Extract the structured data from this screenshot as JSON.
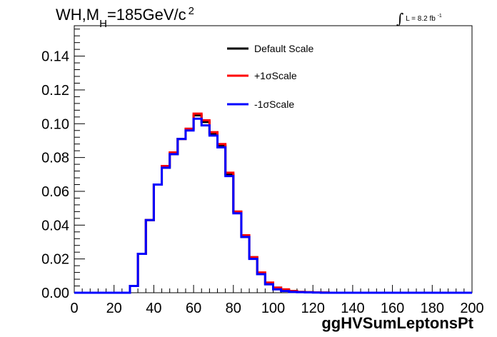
{
  "title": {
    "main": "WH,M",
    "sub": "H",
    "rest": "=185GeV/c",
    "sup": "2"
  },
  "luminosity": {
    "symbol": "∫",
    "text": "L = 8.2 fb",
    "sup": "-1"
  },
  "chart_data": {
    "type": "line",
    "style": "step-histogram",
    "xlabel": "ggHVSumLeptonsPt",
    "ylabel": "",
    "xlim": [
      0,
      200
    ],
    "ylim": [
      0,
      0.158
    ],
    "xticks": [
      0,
      20,
      40,
      60,
      80,
      100,
      120,
      140,
      160,
      180,
      200
    ],
    "yticks": [
      0.0,
      0.02,
      0.04,
      0.06,
      0.08,
      0.1,
      0.12,
      0.14
    ],
    "ytick_labels": [
      "0.00",
      "0.02",
      "0.04",
      "0.06",
      "0.08",
      "0.10",
      "0.12",
      "0.14"
    ],
    "bin_edges": [
      0,
      4,
      8,
      12,
      16,
      20,
      24,
      28,
      32,
      36,
      40,
      44,
      48,
      52,
      56,
      60,
      64,
      68,
      72,
      76,
      80,
      84,
      88,
      92,
      96,
      100,
      104,
      108,
      112,
      116,
      120,
      124,
      128,
      132,
      136,
      140,
      144,
      148,
      152,
      156,
      160,
      164,
      168,
      172,
      176,
      180,
      184,
      188,
      192,
      196,
      200
    ],
    "grid": false,
    "legend_position": "top-center",
    "series": [
      {
        "name": "Default Scale",
        "color": "#000000",
        "values": [
          0,
          0,
          0,
          0,
          0,
          0,
          0,
          0.004,
          0.023,
          0.043,
          0.064,
          0.074,
          0.082,
          0.091,
          0.097,
          0.105,
          0.101,
          0.094,
          0.087,
          0.07,
          0.048,
          0.033,
          0.021,
          0.011,
          0.005,
          0.003,
          0.0015,
          0.001,
          0.0005,
          0.0003,
          0.0002,
          0.0001,
          0,
          0,
          0,
          0,
          0,
          0,
          0,
          0,
          0,
          0,
          0,
          0,
          0,
          0,
          0,
          0,
          0,
          0
        ]
      },
      {
        "name": "+1σScale",
        "color": "#ff0000",
        "values": [
          0,
          0,
          0,
          0,
          0,
          0,
          0,
          0.004,
          0.023,
          0.043,
          0.064,
          0.075,
          0.083,
          0.091,
          0.097,
          0.106,
          0.102,
          0.095,
          0.088,
          0.071,
          0.048,
          0.034,
          0.021,
          0.012,
          0.006,
          0.003,
          0.002,
          0.001,
          0.0005,
          0.0003,
          0.0002,
          0.0001,
          0,
          0,
          0,
          0,
          0,
          0,
          0,
          0,
          0,
          0,
          0,
          0,
          0,
          0,
          0,
          0,
          0,
          0
        ]
      },
      {
        "name": "-1σScale",
        "color": "#0000ff",
        "values": [
          0,
          0,
          0,
          0,
          0,
          0,
          0,
          0.004,
          0.023,
          0.043,
          0.064,
          0.074,
          0.082,
          0.091,
          0.096,
          0.103,
          0.099,
          0.093,
          0.086,
          0.069,
          0.047,
          0.033,
          0.02,
          0.011,
          0.005,
          0.002,
          0.001,
          0.0005,
          0.0003,
          0.0002,
          0.0001,
          0,
          0,
          0,
          0,
          0,
          0,
          0,
          0,
          0,
          0,
          0,
          0,
          0,
          0,
          0,
          0,
          0,
          0,
          0
        ]
      }
    ]
  }
}
